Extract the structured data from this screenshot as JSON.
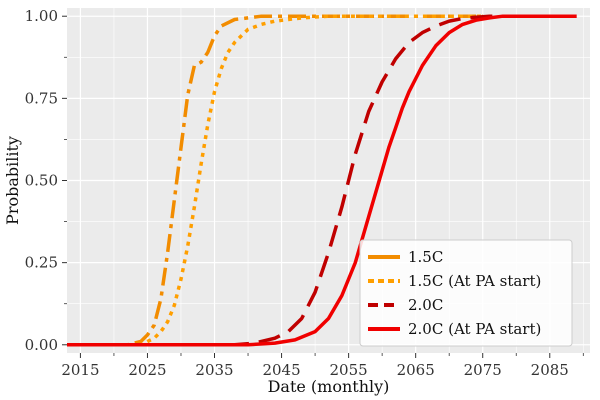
{
  "chart_data": {
    "type": "line",
    "xlabel": "Date (monthly)",
    "ylabel": "Probability",
    "xlim": [
      2013,
      2091
    ],
    "ylim": [
      -0.025,
      1.025
    ],
    "x_ticks": [
      2015,
      2025,
      2035,
      2045,
      2055,
      2065,
      2075,
      2085
    ],
    "x_tick_labels": [
      "2015",
      "2025",
      "2035",
      "2045",
      "2055",
      "2065",
      "2075",
      "2085"
    ],
    "x_minor_ticks": [
      2020,
      2030,
      2040,
      2050,
      2060,
      2070,
      2080,
      2090
    ],
    "y_ticks": [
      0,
      0.25,
      0.5,
      0.75,
      1.0
    ],
    "y_tick_labels": [
      "0.00",
      "0.25",
      "0.50",
      "0.75",
      "1.00"
    ],
    "y_minor_ticks": [
      0.125,
      0.375,
      0.625,
      0.875
    ],
    "grid": true,
    "legend_position": "lower-right",
    "series": [
      {
        "name": "1.5C",
        "color": "#F28C00",
        "dash": "dashdot",
        "x": [
          2013,
          2022,
          2024,
          2025,
          2026,
          2027,
          2028,
          2029,
          2030,
          2031,
          2032,
          2033,
          2034,
          2035,
          2036,
          2038,
          2040,
          2042,
          2045,
          2050,
          2075
        ],
        "y": [
          0.0,
          0.0,
          0.01,
          0.03,
          0.06,
          0.14,
          0.28,
          0.44,
          0.6,
          0.76,
          0.85,
          0.86,
          0.89,
          0.94,
          0.97,
          0.99,
          0.995,
          1.0,
          1.0,
          1.0,
          1.0
        ]
      },
      {
        "name": "1.5C (At PA start)",
        "color": "#FF9F00",
        "dash": "dotted",
        "x": [
          2013,
          2024,
          2025,
          2026,
          2027,
          2028,
          2029,
          2030,
          2031,
          2032,
          2033,
          2034,
          2035,
          2036,
          2037,
          2038,
          2039,
          2040,
          2042,
          2044,
          2046,
          2048,
          2052,
          2060,
          2075
        ],
        "y": [
          0.0,
          0.0,
          0.01,
          0.02,
          0.04,
          0.07,
          0.12,
          0.2,
          0.3,
          0.42,
          0.55,
          0.67,
          0.77,
          0.84,
          0.89,
          0.92,
          0.94,
          0.96,
          0.975,
          0.985,
          0.99,
          0.995,
          1.0,
          1.0,
          1.0
        ]
      },
      {
        "name": "2.0C",
        "color": "#C00000",
        "dash": "dashed",
        "x": [
          2013,
          2038,
          2041,
          2044,
          2046,
          2048,
          2050,
          2052,
          2054,
          2055,
          2056,
          2058,
          2060,
          2062,
          2064,
          2066,
          2068,
          2070,
          2072,
          2074,
          2076,
          2078,
          2080,
          2089
        ],
        "y": [
          0.0,
          0.0,
          0.005,
          0.02,
          0.04,
          0.08,
          0.16,
          0.28,
          0.42,
          0.5,
          0.58,
          0.71,
          0.8,
          0.87,
          0.92,
          0.95,
          0.97,
          0.985,
          0.993,
          0.997,
          1.0,
          1.0,
          1.0,
          1.0
        ]
      },
      {
        "name": "2.0C (At PA start)",
        "color": "#F00000",
        "dash": "solid",
        "x": [
          2013,
          2040,
          2044,
          2047,
          2050,
          2052,
          2054,
          2056,
          2057,
          2058,
          2059,
          2060,
          2061,
          2062,
          2063,
          2064,
          2066,
          2068,
          2070,
          2072,
          2074,
          2076,
          2078,
          2080,
          2085,
          2089
        ],
        "y": [
          0.0,
          0.0,
          0.005,
          0.015,
          0.04,
          0.08,
          0.15,
          0.25,
          0.32,
          0.39,
          0.46,
          0.53,
          0.6,
          0.66,
          0.72,
          0.77,
          0.85,
          0.91,
          0.95,
          0.975,
          0.988,
          0.995,
          1.0,
          1.0,
          1.0,
          1.0
        ]
      }
    ]
  }
}
